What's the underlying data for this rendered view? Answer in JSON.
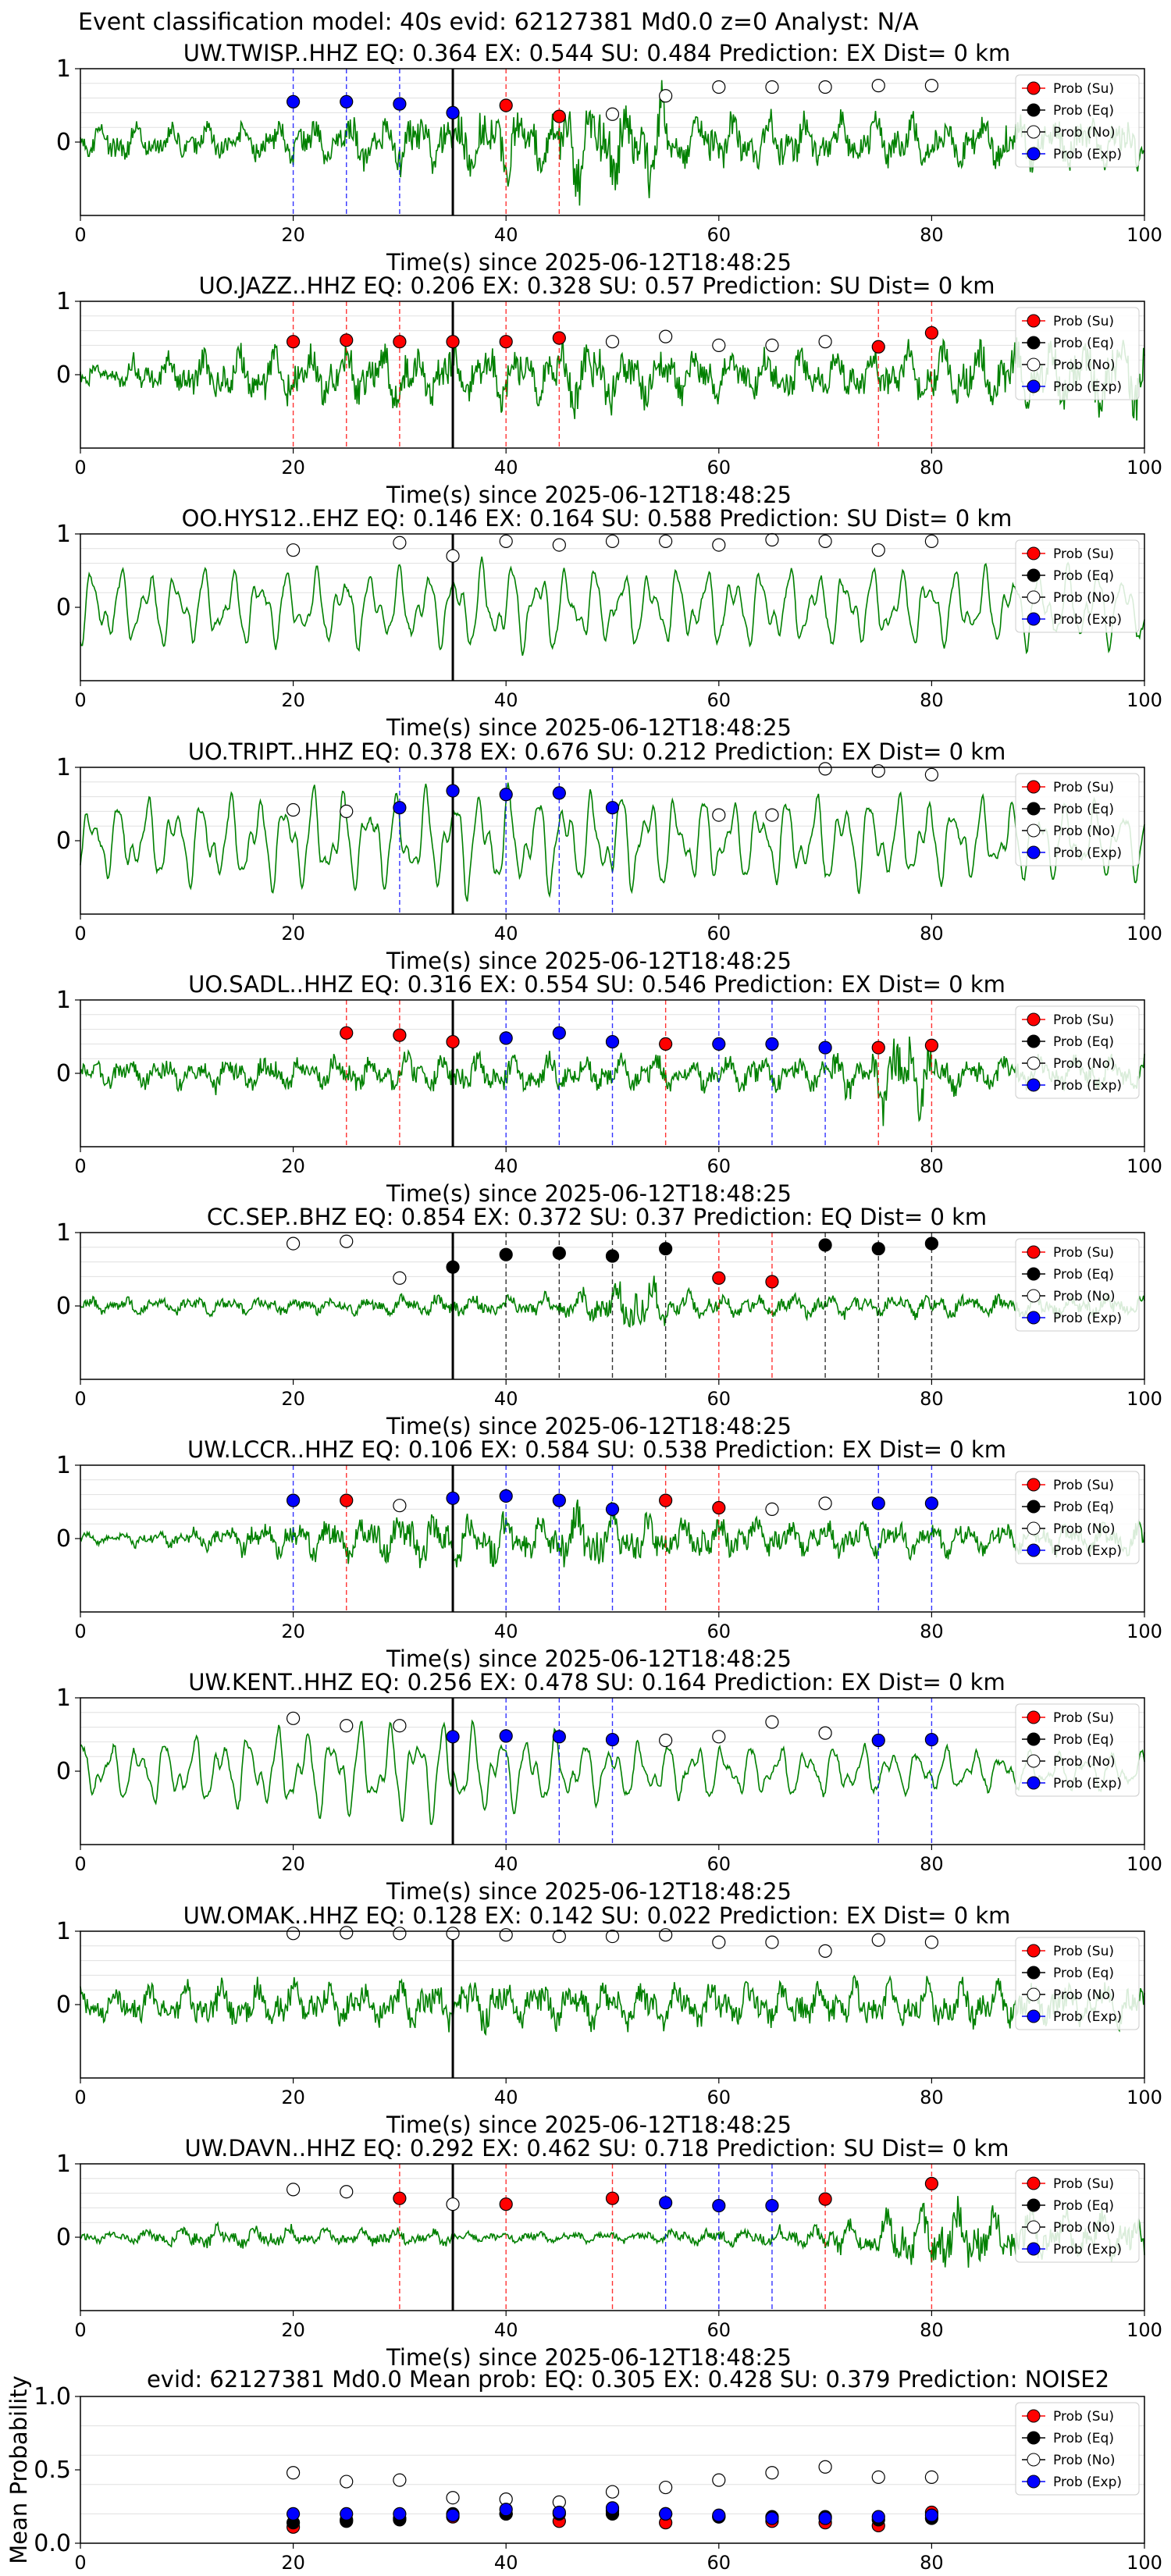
{
  "figure": {
    "suptitle": "Event classification model: 40s evid: 62127381 Md0.0 z=0 Analyst: N/A",
    "xlabel": "Time(s) since 2025-06-12T18:48:25",
    "xlim": [
      0,
      100
    ],
    "xticks": [
      0,
      20,
      40,
      60,
      80,
      100
    ],
    "origin_time": 35,
    "legend": [
      "Prob (Su)",
      "Prob (Eq)",
      "Prob (No)",
      "Prob (Exp)"
    ],
    "colors": {
      "su": "#ff0000",
      "eq": "#000000",
      "no": "#ffffff",
      "exp": "#0000ff",
      "trace": "#008000"
    }
  },
  "chart_data": [
    {
      "type": "line",
      "title": "UW.TWISP..HHZ   EQ: 0.364  EX: 0.544  SU: 0.484   Prediction: EX    Dist= 0 km",
      "ylim": [
        -1,
        1
      ],
      "yticks": [
        0,
        1
      ],
      "amp": [
        0.35,
        0.3,
        0.3,
        0.35,
        0.4,
        0.45,
        0.55,
        0.6,
        0.65,
        0.95,
        0.9,
        0.5,
        0.5,
        0.5,
        0.45,
        0.45,
        0.45,
        0.45,
        0.45,
        0.45
      ],
      "points": [
        {
          "t": 20,
          "p": 0.55,
          "c": "exp"
        },
        {
          "t": 25,
          "p": 0.55,
          "c": "exp"
        },
        {
          "t": 30,
          "p": 0.52,
          "c": "exp"
        },
        {
          "t": 35,
          "p": 0.4,
          "c": "exp"
        },
        {
          "t": 40,
          "p": 0.5,
          "c": "su"
        },
        {
          "t": 45,
          "p": 0.35,
          "c": "su"
        },
        {
          "t": 50,
          "p": 0.38,
          "c": "no"
        },
        {
          "t": 55,
          "p": 0.63,
          "c": "no"
        },
        {
          "t": 60,
          "p": 0.75,
          "c": "no"
        },
        {
          "t": 65,
          "p": 0.75,
          "c": "no"
        },
        {
          "t": 70,
          "p": 0.75,
          "c": "no"
        },
        {
          "t": 75,
          "p": 0.77,
          "c": "no"
        },
        {
          "t": 80,
          "p": 0.77,
          "c": "no"
        }
      ]
    },
    {
      "type": "line",
      "title": "UO.JAZZ..HHZ   EQ: 0.206  EX: 0.328  SU: 0.57   Prediction: SU    Dist= 0 km",
      "ylim": [
        -1,
        1
      ],
      "yticks": [
        0,
        1
      ],
      "amp": [
        0.25,
        0.35,
        0.45,
        0.55,
        0.5,
        0.55,
        0.6,
        0.55,
        0.5,
        0.65,
        0.55,
        0.45,
        0.4,
        0.45,
        0.45,
        0.5,
        0.55,
        0.55,
        0.6,
        0.75
      ],
      "points": [
        {
          "t": 20,
          "p": 0.45,
          "c": "su"
        },
        {
          "t": 25,
          "p": 0.47,
          "c": "su"
        },
        {
          "t": 30,
          "p": 0.45,
          "c": "su"
        },
        {
          "t": 35,
          "p": 0.45,
          "c": "su"
        },
        {
          "t": 40,
          "p": 0.45,
          "c": "su"
        },
        {
          "t": 45,
          "p": 0.5,
          "c": "su"
        },
        {
          "t": 50,
          "p": 0.45,
          "c": "no"
        },
        {
          "t": 55,
          "p": 0.52,
          "c": "no"
        },
        {
          "t": 60,
          "p": 0.4,
          "c": "no"
        },
        {
          "t": 65,
          "p": 0.4,
          "c": "no"
        },
        {
          "t": 70,
          "p": 0.45,
          "c": "no"
        },
        {
          "t": 75,
          "p": 0.38,
          "c": "su"
        },
        {
          "t": 80,
          "p": 0.57,
          "c": "su"
        }
      ]
    },
    {
      "type": "line",
      "title": "OO.HYS12..EHZ   EQ: 0.146  EX: 0.164  SU: 0.588   Prediction: SU    Dist= 0 km",
      "ylim": [
        -1,
        1
      ],
      "yticks": [
        0,
        1
      ],
      "amp": [
        0.6,
        0.6,
        0.6,
        0.6,
        0.6,
        0.6,
        0.6,
        0.7,
        0.7,
        0.6,
        0.6,
        0.6,
        0.6,
        0.6,
        0.6,
        0.6,
        0.6,
        0.6,
        0.6,
        0.6
      ],
      "points": [
        {
          "t": 20,
          "p": 0.78,
          "c": "no"
        },
        {
          "t": 30,
          "p": 0.88,
          "c": "no"
        },
        {
          "t": 35,
          "p": 0.7,
          "c": "no"
        },
        {
          "t": 40,
          "p": 0.9,
          "c": "no"
        },
        {
          "t": 45,
          "p": 0.85,
          "c": "no"
        },
        {
          "t": 50,
          "p": 0.9,
          "c": "no"
        },
        {
          "t": 55,
          "p": 0.9,
          "c": "no"
        },
        {
          "t": 60,
          "p": 0.85,
          "c": "no"
        },
        {
          "t": 65,
          "p": 0.92,
          "c": "no"
        },
        {
          "t": 70,
          "p": 0.9,
          "c": "no"
        },
        {
          "t": 75,
          "p": 0.78,
          "c": "no"
        },
        {
          "t": 80,
          "p": 0.9,
          "c": "no"
        }
      ]
    },
    {
      "type": "line",
      "title": "UO.TRIPT..HHZ   EQ: 0.378  EX: 0.676  SU: 0.212   Prediction: EX    Dist= 0 km",
      "ylim": [
        -1,
        1
      ],
      "yticks": [
        0,
        1
      ],
      "amp": [
        0.6,
        0.65,
        0.7,
        0.75,
        0.8,
        0.75,
        0.8,
        0.85,
        0.8,
        0.75,
        0.8,
        0.7,
        0.65,
        0.7,
        0.75,
        0.7,
        0.65,
        0.6,
        0.6,
        0.6
      ],
      "points": [
        {
          "t": 20,
          "p": 0.42,
          "c": "no"
        },
        {
          "t": 25,
          "p": 0.4,
          "c": "no"
        },
        {
          "t": 30,
          "p": 0.45,
          "c": "exp"
        },
        {
          "t": 35,
          "p": 0.68,
          "c": "exp"
        },
        {
          "t": 40,
          "p": 0.63,
          "c": "exp"
        },
        {
          "t": 45,
          "p": 0.65,
          "c": "exp"
        },
        {
          "t": 50,
          "p": 0.45,
          "c": "exp"
        },
        {
          "t": 60,
          "p": 0.35,
          "c": "no"
        },
        {
          "t": 65,
          "p": 0.35,
          "c": "no"
        },
        {
          "t": 70,
          "p": 0.98,
          "c": "no"
        },
        {
          "t": 75,
          "p": 0.95,
          "c": "no"
        },
        {
          "t": 80,
          "p": 0.9,
          "c": "no"
        }
      ]
    },
    {
      "type": "line",
      "title": "UO.SADL..HHZ   EQ: 0.316  EX: 0.554  SU: 0.546   Prediction: EX    Dist= 0 km",
      "ylim": [
        -1,
        1
      ],
      "yticks": [
        0,
        1
      ],
      "amp": [
        0.25,
        0.25,
        0.3,
        0.3,
        0.3,
        0.3,
        0.35,
        0.35,
        0.35,
        0.3,
        0.3,
        0.3,
        0.35,
        0.3,
        0.4,
        0.8,
        0.35,
        0.3,
        0.3,
        0.3
      ],
      "points": [
        {
          "t": 25,
          "p": 0.55,
          "c": "su"
        },
        {
          "t": 30,
          "p": 0.52,
          "c": "su"
        },
        {
          "t": 35,
          "p": 0.43,
          "c": "su"
        },
        {
          "t": 40,
          "p": 0.48,
          "c": "exp"
        },
        {
          "t": 45,
          "p": 0.55,
          "c": "exp"
        },
        {
          "t": 50,
          "p": 0.43,
          "c": "exp"
        },
        {
          "t": 55,
          "p": 0.4,
          "c": "su"
        },
        {
          "t": 60,
          "p": 0.4,
          "c": "exp"
        },
        {
          "t": 65,
          "p": 0.4,
          "c": "exp"
        },
        {
          "t": 70,
          "p": 0.35,
          "c": "exp"
        },
        {
          "t": 75,
          "p": 0.35,
          "c": "su"
        },
        {
          "t": 80,
          "p": 0.38,
          "c": "su"
        }
      ]
    },
    {
      "type": "line",
      "title": "CC.SEP..BHZ   EQ: 0.854  EX: 0.372  SU: 0.37   Prediction: EQ    Dist= 0 km",
      "ylim": [
        -1,
        1
      ],
      "yticks": [
        0,
        1
      ],
      "amp": [
        0.15,
        0.15,
        0.15,
        0.15,
        0.15,
        0.15,
        0.2,
        0.2,
        0.2,
        0.3,
        0.5,
        0.25,
        0.2,
        0.2,
        0.2,
        0.2,
        0.2,
        0.2,
        0.2,
        0.2
      ],
      "points": [
        {
          "t": 20,
          "p": 0.85,
          "c": "no"
        },
        {
          "t": 25,
          "p": 0.88,
          "c": "no"
        },
        {
          "t": 30,
          "p": 0.38,
          "c": "no"
        },
        {
          "t": 35,
          "p": 0.53,
          "c": "eq"
        },
        {
          "t": 40,
          "p": 0.7,
          "c": "eq"
        },
        {
          "t": 45,
          "p": 0.72,
          "c": "eq"
        },
        {
          "t": 50,
          "p": 0.68,
          "c": "eq"
        },
        {
          "t": 55,
          "p": 0.78,
          "c": "eq"
        },
        {
          "t": 60,
          "p": 0.38,
          "c": "su"
        },
        {
          "t": 65,
          "p": 0.33,
          "c": "su"
        },
        {
          "t": 70,
          "p": 0.83,
          "c": "eq"
        },
        {
          "t": 75,
          "p": 0.78,
          "c": "eq"
        },
        {
          "t": 80,
          "p": 0.85,
          "c": "eq"
        }
      ]
    },
    {
      "type": "line",
      "title": "UW.LCCR..HHZ   EQ: 0.106  EX: 0.584  SU: 0.538   Prediction: EX    Dist= 0 km",
      "ylim": [
        -1,
        1
      ],
      "yticks": [
        0,
        1
      ],
      "amp": [
        0.1,
        0.15,
        0.2,
        0.3,
        0.35,
        0.4,
        0.45,
        0.45,
        0.4,
        0.6,
        0.45,
        0.4,
        0.35,
        0.3,
        0.3,
        0.3,
        0.3,
        0.3,
        0.3,
        0.3
      ],
      "points": [
        {
          "t": 20,
          "p": 0.52,
          "c": "exp"
        },
        {
          "t": 25,
          "p": 0.52,
          "c": "su"
        },
        {
          "t": 30,
          "p": 0.45,
          "c": "no"
        },
        {
          "t": 35,
          "p": 0.55,
          "c": "exp"
        },
        {
          "t": 40,
          "p": 0.58,
          "c": "exp"
        },
        {
          "t": 45,
          "p": 0.52,
          "c": "exp"
        },
        {
          "t": 50,
          "p": 0.4,
          "c": "exp"
        },
        {
          "t": 55,
          "p": 0.52,
          "c": "su"
        },
        {
          "t": 60,
          "p": 0.42,
          "c": "su"
        },
        {
          "t": 65,
          "p": 0.4,
          "c": "no"
        },
        {
          "t": 70,
          "p": 0.48,
          "c": "no"
        },
        {
          "t": 75,
          "p": 0.48,
          "c": "exp"
        },
        {
          "t": 80,
          "p": 0.48,
          "c": "exp"
        }
      ]
    },
    {
      "type": "line",
      "title": "UW.KENT..HHZ   EQ: 0.256  EX: 0.478  SU: 0.164   Prediction: EX    Dist= 0 km",
      "ylim": [
        -1,
        1
      ],
      "yticks": [
        0,
        1
      ],
      "amp": [
        0.45,
        0.5,
        0.55,
        0.65,
        0.7,
        0.75,
        0.8,
        0.7,
        0.6,
        0.5,
        0.45,
        0.45,
        0.4,
        0.4,
        0.4,
        0.35,
        0.35,
        0.3,
        0.3,
        0.3
      ],
      "points": [
        {
          "t": 20,
          "p": 0.72,
          "c": "no"
        },
        {
          "t": 25,
          "p": 0.62,
          "c": "no"
        },
        {
          "t": 30,
          "p": 0.62,
          "c": "no"
        },
        {
          "t": 35,
          "p": 0.47,
          "c": "exp"
        },
        {
          "t": 40,
          "p": 0.48,
          "c": "exp"
        },
        {
          "t": 45,
          "p": 0.47,
          "c": "exp"
        },
        {
          "t": 50,
          "p": 0.43,
          "c": "exp"
        },
        {
          "t": 55,
          "p": 0.42,
          "c": "no"
        },
        {
          "t": 60,
          "p": 0.47,
          "c": "no"
        },
        {
          "t": 65,
          "p": 0.67,
          "c": "no"
        },
        {
          "t": 70,
          "p": 0.52,
          "c": "no"
        },
        {
          "t": 75,
          "p": 0.42,
          "c": "exp"
        },
        {
          "t": 80,
          "p": 0.43,
          "c": "exp"
        }
      ]
    },
    {
      "type": "line",
      "title": "UW.OMAK..HHZ   EQ: 0.128  EX: 0.142  SU: 0.022   Prediction: EX    Dist= 0 km",
      "ylim": [
        -1,
        1
      ],
      "yticks": [
        0,
        1
      ],
      "amp": [
        0.3,
        0.35,
        0.4,
        0.4,
        0.4,
        0.4,
        0.4,
        0.45,
        0.4,
        0.4,
        0.4,
        0.4,
        0.4,
        0.4,
        0.4,
        0.4,
        0.4,
        0.4,
        0.4,
        0.4
      ],
      "points": [
        {
          "t": 20,
          "p": 0.97,
          "c": "no"
        },
        {
          "t": 25,
          "p": 0.98,
          "c": "no"
        },
        {
          "t": 30,
          "p": 0.97,
          "c": "no"
        },
        {
          "t": 35,
          "p": 0.97,
          "c": "no"
        },
        {
          "t": 40,
          "p": 0.95,
          "c": "no"
        },
        {
          "t": 45,
          "p": 0.93,
          "c": "no"
        },
        {
          "t": 50,
          "p": 0.93,
          "c": "no"
        },
        {
          "t": 55,
          "p": 0.95,
          "c": "no"
        },
        {
          "t": 60,
          "p": 0.85,
          "c": "no"
        },
        {
          "t": 65,
          "p": 0.85,
          "c": "no"
        },
        {
          "t": 70,
          "p": 0.73,
          "c": "no"
        },
        {
          "t": 75,
          "p": 0.88,
          "c": "no"
        },
        {
          "t": 80,
          "p": 0.85,
          "c": "no"
        }
      ]
    },
    {
      "type": "line",
      "title": "UW.DAVN..HHZ   EQ: 0.292  EX: 0.462  SU: 0.718   Prediction: SU    Dist= 0 km",
      "ylim": [
        -1,
        1
      ],
      "yticks": [
        0,
        1
      ],
      "amp": [
        0.1,
        0.15,
        0.2,
        0.2,
        0.15,
        0.15,
        0.15,
        0.1,
        0.1,
        0.1,
        0.1,
        0.15,
        0.15,
        0.2,
        0.3,
        0.5,
        0.6,
        0.5,
        0.45,
        0.45
      ],
      "points": [
        {
          "t": 20,
          "p": 0.65,
          "c": "no"
        },
        {
          "t": 25,
          "p": 0.62,
          "c": "no"
        },
        {
          "t": 30,
          "p": 0.53,
          "c": "su"
        },
        {
          "t": 35,
          "p": 0.45,
          "c": "no"
        },
        {
          "t": 40,
          "p": 0.45,
          "c": "su"
        },
        {
          "t": 50,
          "p": 0.53,
          "c": "su"
        },
        {
          "t": 55,
          "p": 0.47,
          "c": "exp"
        },
        {
          "t": 60,
          "p": 0.43,
          "c": "exp"
        },
        {
          "t": 65,
          "p": 0.43,
          "c": "exp"
        },
        {
          "t": 70,
          "p": 0.52,
          "c": "su"
        },
        {
          "t": 80,
          "p": 0.73,
          "c": "su"
        }
      ]
    },
    {
      "type": "scatter",
      "title": "evid: 62127381  Md0.0   Mean prob:   EQ: 0.305  EX: 0.428  SU: 0.379   Prediction: NOISE2",
      "ylabel": "Mean Probability",
      "ylim": [
        0,
        1
      ],
      "yticks": [
        0.0,
        0.5,
        1.0
      ],
      "x": [
        20,
        25,
        30,
        35,
        40,
        45,
        50,
        55,
        60,
        65,
        70,
        75,
        80
      ],
      "series": [
        {
          "name": "Prob (Su)",
          "c": "su",
          "values": [
            0.11,
            0.16,
            0.17,
            0.18,
            0.2,
            0.15,
            0.22,
            0.14,
            0.18,
            0.15,
            0.14,
            0.12,
            0.21
          ]
        },
        {
          "name": "Prob (Eq)",
          "c": "eq",
          "values": [
            0.14,
            0.15,
            0.16,
            0.2,
            0.2,
            0.2,
            0.2,
            0.2,
            0.18,
            0.18,
            0.18,
            0.16,
            0.17
          ]
        },
        {
          "name": "Prob (No)",
          "c": "no",
          "values": [
            0.48,
            0.42,
            0.43,
            0.31,
            0.3,
            0.28,
            0.35,
            0.38,
            0.43,
            0.48,
            0.52,
            0.45,
            0.45
          ]
        },
        {
          "name": "Prob (Exp)",
          "c": "exp",
          "values": [
            0.2,
            0.2,
            0.2,
            0.19,
            0.23,
            0.21,
            0.24,
            0.2,
            0.19,
            0.17,
            0.17,
            0.18,
            0.19
          ]
        }
      ]
    }
  ]
}
